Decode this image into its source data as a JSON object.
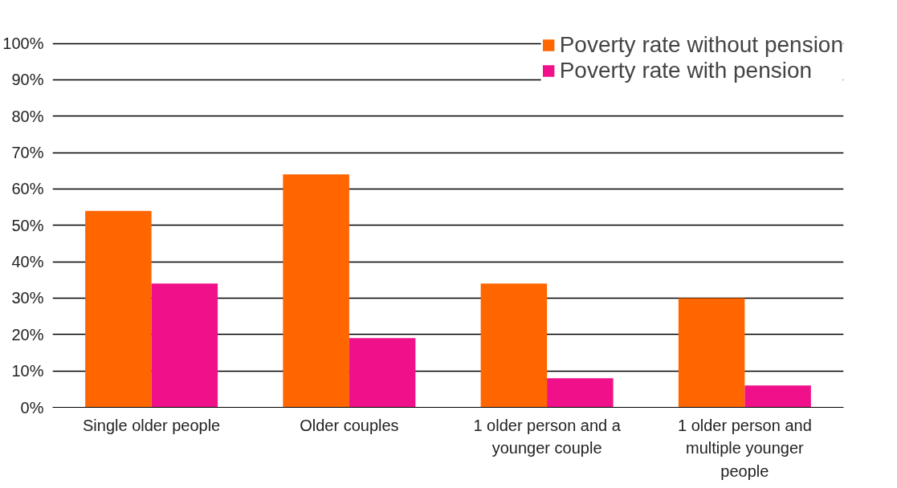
{
  "chart_data": {
    "type": "bar",
    "categories": [
      "Single older people",
      "Older couples",
      "1 older person and a younger couple",
      "1 older person and multiple younger people"
    ],
    "series": [
      {
        "name": "Poverty rate without pension",
        "color": "#ff6600",
        "values": [
          54,
          64,
          34,
          30
        ]
      },
      {
        "name": "Poverty rate with pension",
        "color": "#f0118a",
        "values": [
          34,
          19,
          8,
          6
        ]
      }
    ],
    "ylim": [
      0,
      100
    ],
    "yticks": [
      {
        "value": 0,
        "label": "0%"
      },
      {
        "value": 10,
        "label": "10%"
      },
      {
        "value": 20,
        "label": "20%"
      },
      {
        "value": 30,
        "label": "30%"
      },
      {
        "value": 40,
        "label": "40%"
      },
      {
        "value": 50,
        "label": "50%"
      },
      {
        "value": 60,
        "label": "60%"
      },
      {
        "value": 70,
        "label": "70%"
      },
      {
        "value": 80,
        "label": "80%"
      },
      {
        "value": 90,
        "label": "90%"
      },
      {
        "value": 100,
        "label": "100%"
      }
    ],
    "grid": "y",
    "legend": "top right"
  }
}
